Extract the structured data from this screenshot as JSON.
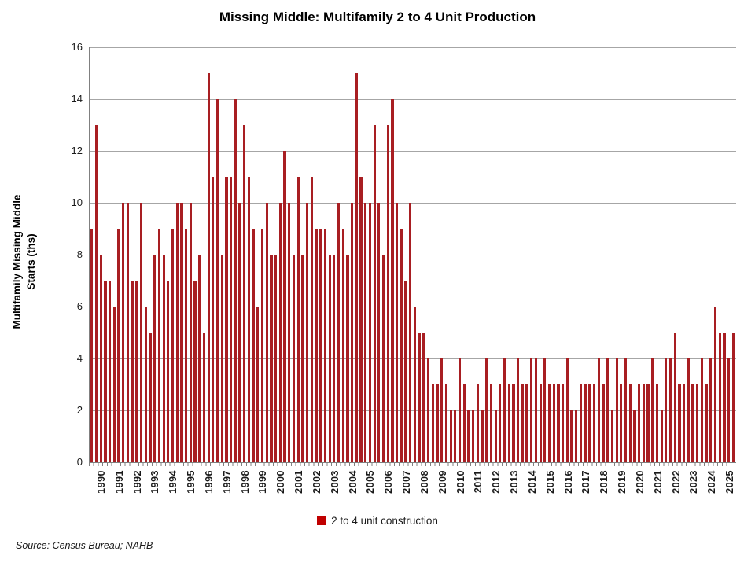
{
  "title": "Missing Middle: Multifamily 2 to 4 Unit Production",
  "y_axis": {
    "title_line1": "Multifamily Missing Middle",
    "title_line2": "Starts (ths)",
    "ticks": [
      0,
      2,
      4,
      6,
      8,
      10,
      12,
      14,
      16
    ]
  },
  "legend": {
    "label": "2 to 4 unit construction",
    "color": "#C00000"
  },
  "source": "Source: Census Bureau; NAHB",
  "colors": {
    "bar": "#A81E22",
    "gridline": "#A6A6A6",
    "axis": "#808080"
  },
  "chart_data": {
    "type": "bar",
    "title": "Missing Middle: Multifamily 2 to 4 Unit Production",
    "xlabel": "",
    "ylabel": "Multifamily Missing Middle Starts (ths)",
    "ylim": [
      0,
      16
    ],
    "grid": true,
    "legend_position": "bottom",
    "frequency": "quarterly",
    "categories": [
      "1990",
      "1991",
      "1992",
      "1993",
      "1994",
      "1995",
      "1996",
      "1997",
      "1998",
      "1999",
      "2000",
      "2001",
      "2002",
      "2003",
      "2004",
      "2005",
      "2006",
      "2007",
      "2008",
      "2009",
      "2010",
      "2011",
      "2012",
      "2013",
      "2014",
      "2015",
      "2016",
      "2017",
      "2018",
      "2019",
      "2020",
      "2021",
      "2022",
      "2023",
      "2024",
      "2025"
    ],
    "series": [
      {
        "name": "2 to 4 unit construction",
        "values": [
          9,
          13,
          8,
          7,
          7,
          6,
          9,
          10,
          10,
          7,
          7,
          10,
          6,
          5,
          8,
          9,
          8,
          7,
          9,
          10,
          10,
          9,
          10,
          7,
          8,
          5,
          15,
          11,
          14,
          8,
          11,
          11,
          14,
          10,
          13,
          11,
          9,
          6,
          9,
          10,
          8,
          8,
          10,
          12,
          10,
          8,
          11,
          8,
          10,
          11,
          9,
          9,
          9,
          8,
          8,
          10,
          9,
          8,
          10,
          15,
          11,
          10,
          10,
          13,
          10,
          8,
          13,
          14,
          10,
          9,
          7,
          10,
          6,
          5,
          5,
          4,
          3,
          3,
          4,
          3,
          2,
          2,
          4,
          3,
          2,
          2,
          3,
          2,
          4,
          3,
          2,
          3,
          4,
          3,
          3,
          4,
          3,
          3,
          4,
          4,
          3,
          4,
          3,
          3,
          3,
          3,
          4,
          2,
          2,
          3,
          3,
          3,
          3,
          4,
          3,
          4,
          2,
          4,
          3,
          4,
          3,
          2,
          3,
          3,
          3,
          4,
          3,
          2,
          4,
          4,
          5,
          3,
          3,
          4,
          3,
          3,
          4,
          3,
          4,
          6,
          5,
          5,
          4,
          5
        ]
      }
    ]
  }
}
